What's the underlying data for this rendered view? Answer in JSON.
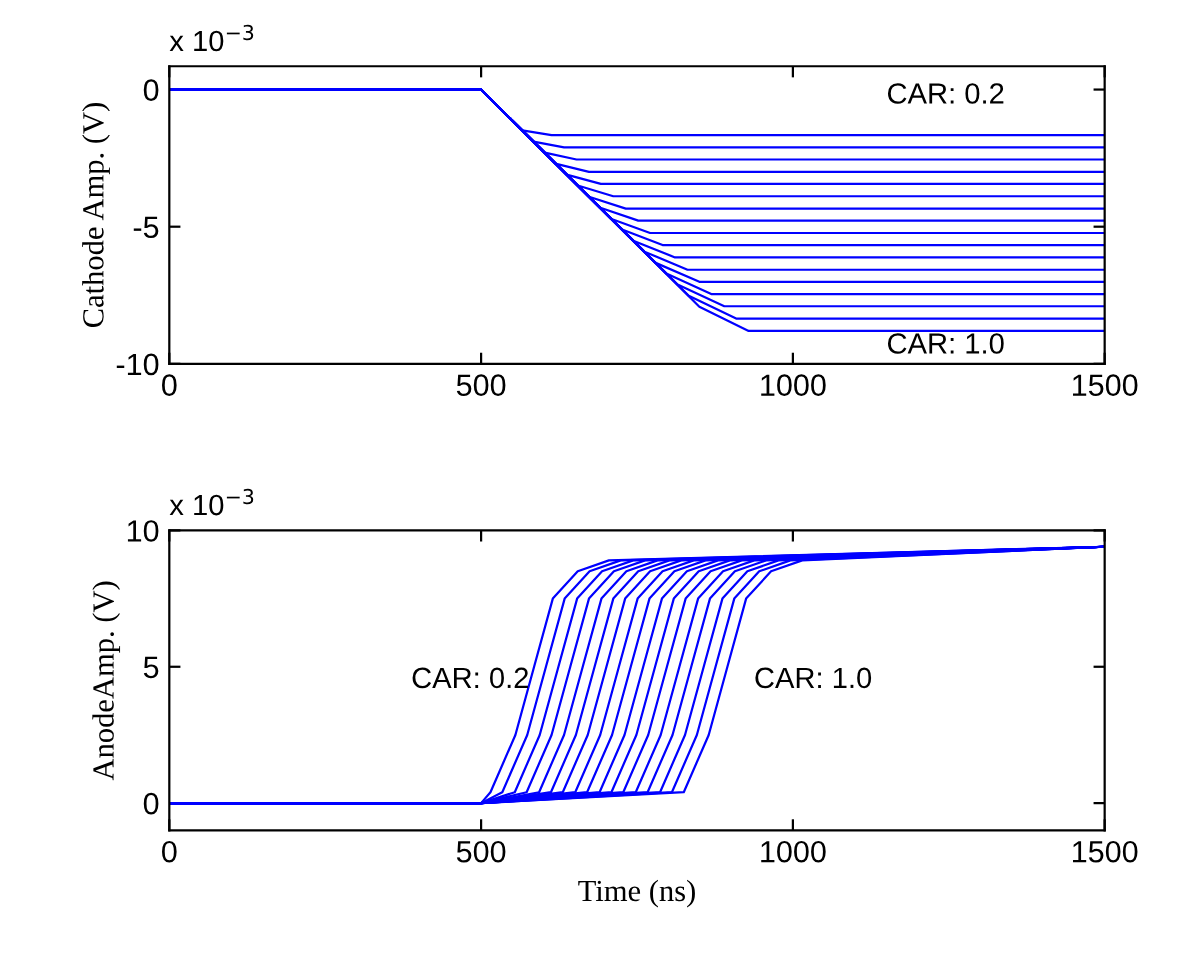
{
  "chart_data": [
    {
      "type": "line",
      "ylabel": "Cathode Amp. (V)",
      "xlim": [
        0,
        1500
      ],
      "ylim": [
        -10,
        0.85
      ],
      "xticks": [
        0,
        500,
        1000,
        1500
      ],
      "yticks": [
        -10,
        -5,
        0
      ],
      "grid": false,
      "marker": "none",
      "line_style": "solid",
      "annotations": [
        "x 10$^{−3}$",
        "CAR: 0.2",
        "CAR: 1.0"
      ],
      "series": [
        {
          "color": "#0000ff",
          "x": [
            0,
            500,
            566,
            613,
            1500
          ],
          "values": [
            0,
            0,
            -1.49,
            -1.66,
            -1.66
          ]
        },
        {
          "color": "#0000ff",
          "x": [
            0,
            500,
            584,
            633,
            1500
          ],
          "values": [
            0,
            0,
            -1.9,
            -2.11,
            -2.11
          ]
        },
        {
          "color": "#0000ff",
          "x": [
            0,
            500,
            602,
            653,
            1500
          ],
          "values": [
            0,
            0,
            -2.3,
            -2.55,
            -2.55
          ]
        },
        {
          "color": "#0000ff",
          "x": [
            0,
            500,
            619,
            673,
            1500
          ],
          "values": [
            0,
            0,
            -2.7,
            -3.0,
            -3.0
          ]
        },
        {
          "color": "#0000ff",
          "x": [
            0,
            500,
            637,
            692,
            1500
          ],
          "values": [
            0,
            0,
            -3.1,
            -3.44,
            -3.44
          ]
        },
        {
          "color": "#0000ff",
          "x": [
            0,
            500,
            655,
            712,
            1500
          ],
          "values": [
            0,
            0,
            -3.5,
            -3.89,
            -3.89
          ]
        },
        {
          "color": "#0000ff",
          "x": [
            0,
            500,
            673,
            732,
            1500
          ],
          "values": [
            0,
            0,
            -3.91,
            -4.34,
            -4.34
          ]
        },
        {
          "color": "#0000ff",
          "x": [
            0,
            500,
            690,
            752,
            1500
          ],
          "values": [
            0,
            0,
            -4.3,
            -4.78,
            -4.78
          ]
        },
        {
          "color": "#0000ff",
          "x": [
            0,
            500,
            708,
            771,
            1500
          ],
          "values": [
            0,
            0,
            -4.71,
            -5.23,
            -5.23
          ]
        },
        {
          "color": "#0000ff",
          "x": [
            0,
            500,
            726,
            791,
            1500
          ],
          "values": [
            0,
            0,
            -5.1,
            -5.67,
            -5.67
          ]
        },
        {
          "color": "#0000ff",
          "x": [
            0,
            500,
            744,
            811,
            1500
          ],
          "values": [
            0,
            0,
            -5.51,
            -6.12,
            -6.12
          ]
        },
        {
          "color": "#0000ff",
          "x": [
            0,
            500,
            762,
            831,
            1500
          ],
          "values": [
            0,
            0,
            -5.91,
            -6.57,
            -6.57
          ]
        },
        {
          "color": "#0000ff",
          "x": [
            0,
            500,
            779,
            850,
            1500
          ],
          "values": [
            0,
            0,
            -6.31,
            -7.01,
            -7.01
          ]
        },
        {
          "color": "#0000ff",
          "x": [
            0,
            500,
            797,
            870,
            1500
          ],
          "values": [
            0,
            0,
            -6.71,
            -7.46,
            -7.46
          ]
        },
        {
          "color": "#0000ff",
          "x": [
            0,
            500,
            815,
            890,
            1500
          ],
          "values": [
            0,
            0,
            -7.11,
            -7.9,
            -7.9
          ]
        },
        {
          "color": "#0000ff",
          "x": [
            0,
            500,
            833,
            909,
            1500
          ],
          "values": [
            0,
            0,
            -7.52,
            -8.35,
            -8.35
          ]
        },
        {
          "color": "#0000ff",
          "x": [
            0,
            500,
            850,
            929,
            1500
          ],
          "values": [
            0,
            0,
            -7.92,
            -8.8,
            -8.8
          ]
        }
      ]
    },
    {
      "type": "line",
      "xlabel": "Time (ns)",
      "ylabel": "AnodeAmp. (V)",
      "xlim": [
        0,
        1500
      ],
      "ylim": [
        -1,
        10
      ],
      "xticks": [
        0,
        500,
        1000,
        1500
      ],
      "yticks": [
        0,
        5,
        10
      ],
      "grid": false,
      "marker": "none",
      "line_style": "solid",
      "annotations": [
        "x 10$^{−3}$",
        "CAR: 0.2",
        "CAR: 1.0"
      ],
      "series": [
        {
          "color": "#0000ff",
          "x": [
            0,
            500,
            515,
            555,
            585,
            615,
            655,
            705,
            1500
          ],
          "values": [
            0,
            0,
            0.4,
            2.5,
            5,
            7.5,
            8.5,
            8.9,
            9.4
          ]
        },
        {
          "color": "#0000ff",
          "x": [
            0,
            500,
            534,
            574,
            604,
            634,
            674,
            724,
            1500
          ],
          "values": [
            0,
            0,
            0.4,
            2.5,
            5,
            7.5,
            8.5,
            8.9,
            9.4
          ]
        },
        {
          "color": "#0000ff",
          "x": [
            0,
            500,
            554,
            594,
            624,
            654,
            694,
            744,
            1500
          ],
          "values": [
            0,
            0,
            0.4,
            2.5,
            5,
            7.5,
            8.5,
            8.9,
            9.4
          ]
        },
        {
          "color": "#0000ff",
          "x": [
            0,
            500,
            573,
            613,
            643,
            673,
            713,
            763,
            1500
          ],
          "values": [
            0,
            0,
            0.4,
            2.5,
            5,
            7.5,
            8.5,
            8.9,
            9.4
          ]
        },
        {
          "color": "#0000ff",
          "x": [
            0,
            500,
            593,
            633,
            663,
            693,
            733,
            783,
            1500
          ],
          "values": [
            0,
            0,
            0.4,
            2.5,
            5,
            7.5,
            8.5,
            8.9,
            9.4
          ]
        },
        {
          "color": "#0000ff",
          "x": [
            0,
            500,
            612,
            652,
            682,
            712,
            752,
            802,
            1500
          ],
          "values": [
            0,
            0,
            0.4,
            2.5,
            5,
            7.5,
            8.5,
            8.9,
            9.4
          ]
        },
        {
          "color": "#0000ff",
          "x": [
            0,
            500,
            631,
            671,
            701,
            731,
            771,
            821,
            1500
          ],
          "values": [
            0,
            0,
            0.4,
            2.5,
            5,
            7.5,
            8.5,
            8.9,
            9.4
          ]
        },
        {
          "color": "#0000ff",
          "x": [
            0,
            500,
            651,
            691,
            721,
            751,
            791,
            841,
            1500
          ],
          "values": [
            0,
            0,
            0.4,
            2.5,
            5,
            7.5,
            8.5,
            8.9,
            9.4
          ]
        },
        {
          "color": "#0000ff",
          "x": [
            0,
            500,
            670,
            710,
            740,
            770,
            810,
            860,
            1500
          ],
          "values": [
            0,
            0,
            0.4,
            2.5,
            5,
            7.5,
            8.5,
            8.9,
            9.4
          ]
        },
        {
          "color": "#0000ff",
          "x": [
            0,
            500,
            690,
            730,
            760,
            790,
            830,
            880,
            1500
          ],
          "values": [
            0,
            0,
            0.4,
            2.5,
            5,
            7.5,
            8.5,
            8.9,
            9.4
          ]
        },
        {
          "color": "#0000ff",
          "x": [
            0,
            500,
            709,
            749,
            779,
            809,
            849,
            899,
            1500
          ],
          "values": [
            0,
            0,
            0.4,
            2.5,
            5,
            7.5,
            8.5,
            8.9,
            9.4
          ]
        },
        {
          "color": "#0000ff",
          "x": [
            0,
            500,
            728,
            768,
            798,
            828,
            868,
            918,
            1500
          ],
          "values": [
            0,
            0,
            0.4,
            2.5,
            5,
            7.5,
            8.5,
            8.9,
            9.4
          ]
        },
        {
          "color": "#0000ff",
          "x": [
            0,
            500,
            748,
            788,
            818,
            848,
            888,
            938,
            1500
          ],
          "values": [
            0,
            0,
            0.4,
            2.5,
            5,
            7.5,
            8.5,
            8.9,
            9.4
          ]
        },
        {
          "color": "#0000ff",
          "x": [
            0,
            500,
            767,
            807,
            837,
            867,
            907,
            957,
            1500
          ],
          "values": [
            0,
            0,
            0.4,
            2.5,
            5,
            7.5,
            8.5,
            8.9,
            9.4
          ]
        },
        {
          "color": "#0000ff",
          "x": [
            0,
            500,
            787,
            827,
            857,
            887,
            927,
            977,
            1500
          ],
          "values": [
            0,
            0,
            0.4,
            2.5,
            5,
            7.5,
            8.5,
            8.9,
            9.4
          ]
        },
        {
          "color": "#0000ff",
          "x": [
            0,
            500,
            806,
            846,
            876,
            906,
            946,
            996,
            1500
          ],
          "values": [
            0,
            0,
            0.4,
            2.5,
            5,
            7.5,
            8.5,
            8.9,
            9.4
          ]
        },
        {
          "color": "#0000ff",
          "x": [
            0,
            500,
            825,
            865,
            895,
            925,
            965,
            1015,
            1500
          ],
          "values": [
            0,
            0,
            0.4,
            2.5,
            5,
            7.5,
            8.5,
            8.9,
            9.4
          ]
        }
      ]
    }
  ]
}
